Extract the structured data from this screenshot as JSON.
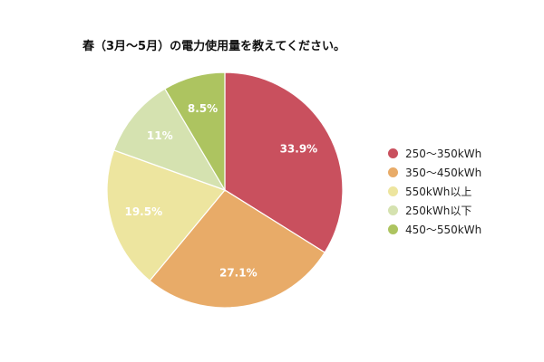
{
  "chart_data": {
    "type": "pie",
    "title": "春（3月〜5月）の電力使用量を教えてください。",
    "start_angle_deg": 0,
    "direction": "clockwise",
    "legend_position": "right",
    "slices": [
      {
        "name": "250〜350kWh",
        "value": 33.9,
        "label": "33.9%",
        "color": "#c9505e"
      },
      {
        "name": "350〜450kWh",
        "value": 27.1,
        "label": "27.1%",
        "color": "#e8ab68"
      },
      {
        "name": "550kWh以上",
        "value": 19.5,
        "label": "19.5%",
        "color": "#ede59f"
      },
      {
        "name": "250kWh以下",
        "value": 11,
        "label": "11%",
        "color": "#d5e2b0"
      },
      {
        "name": "450〜550kWh",
        "value": 8.5,
        "label": "8.5%",
        "color": "#adc460"
      }
    ]
  }
}
